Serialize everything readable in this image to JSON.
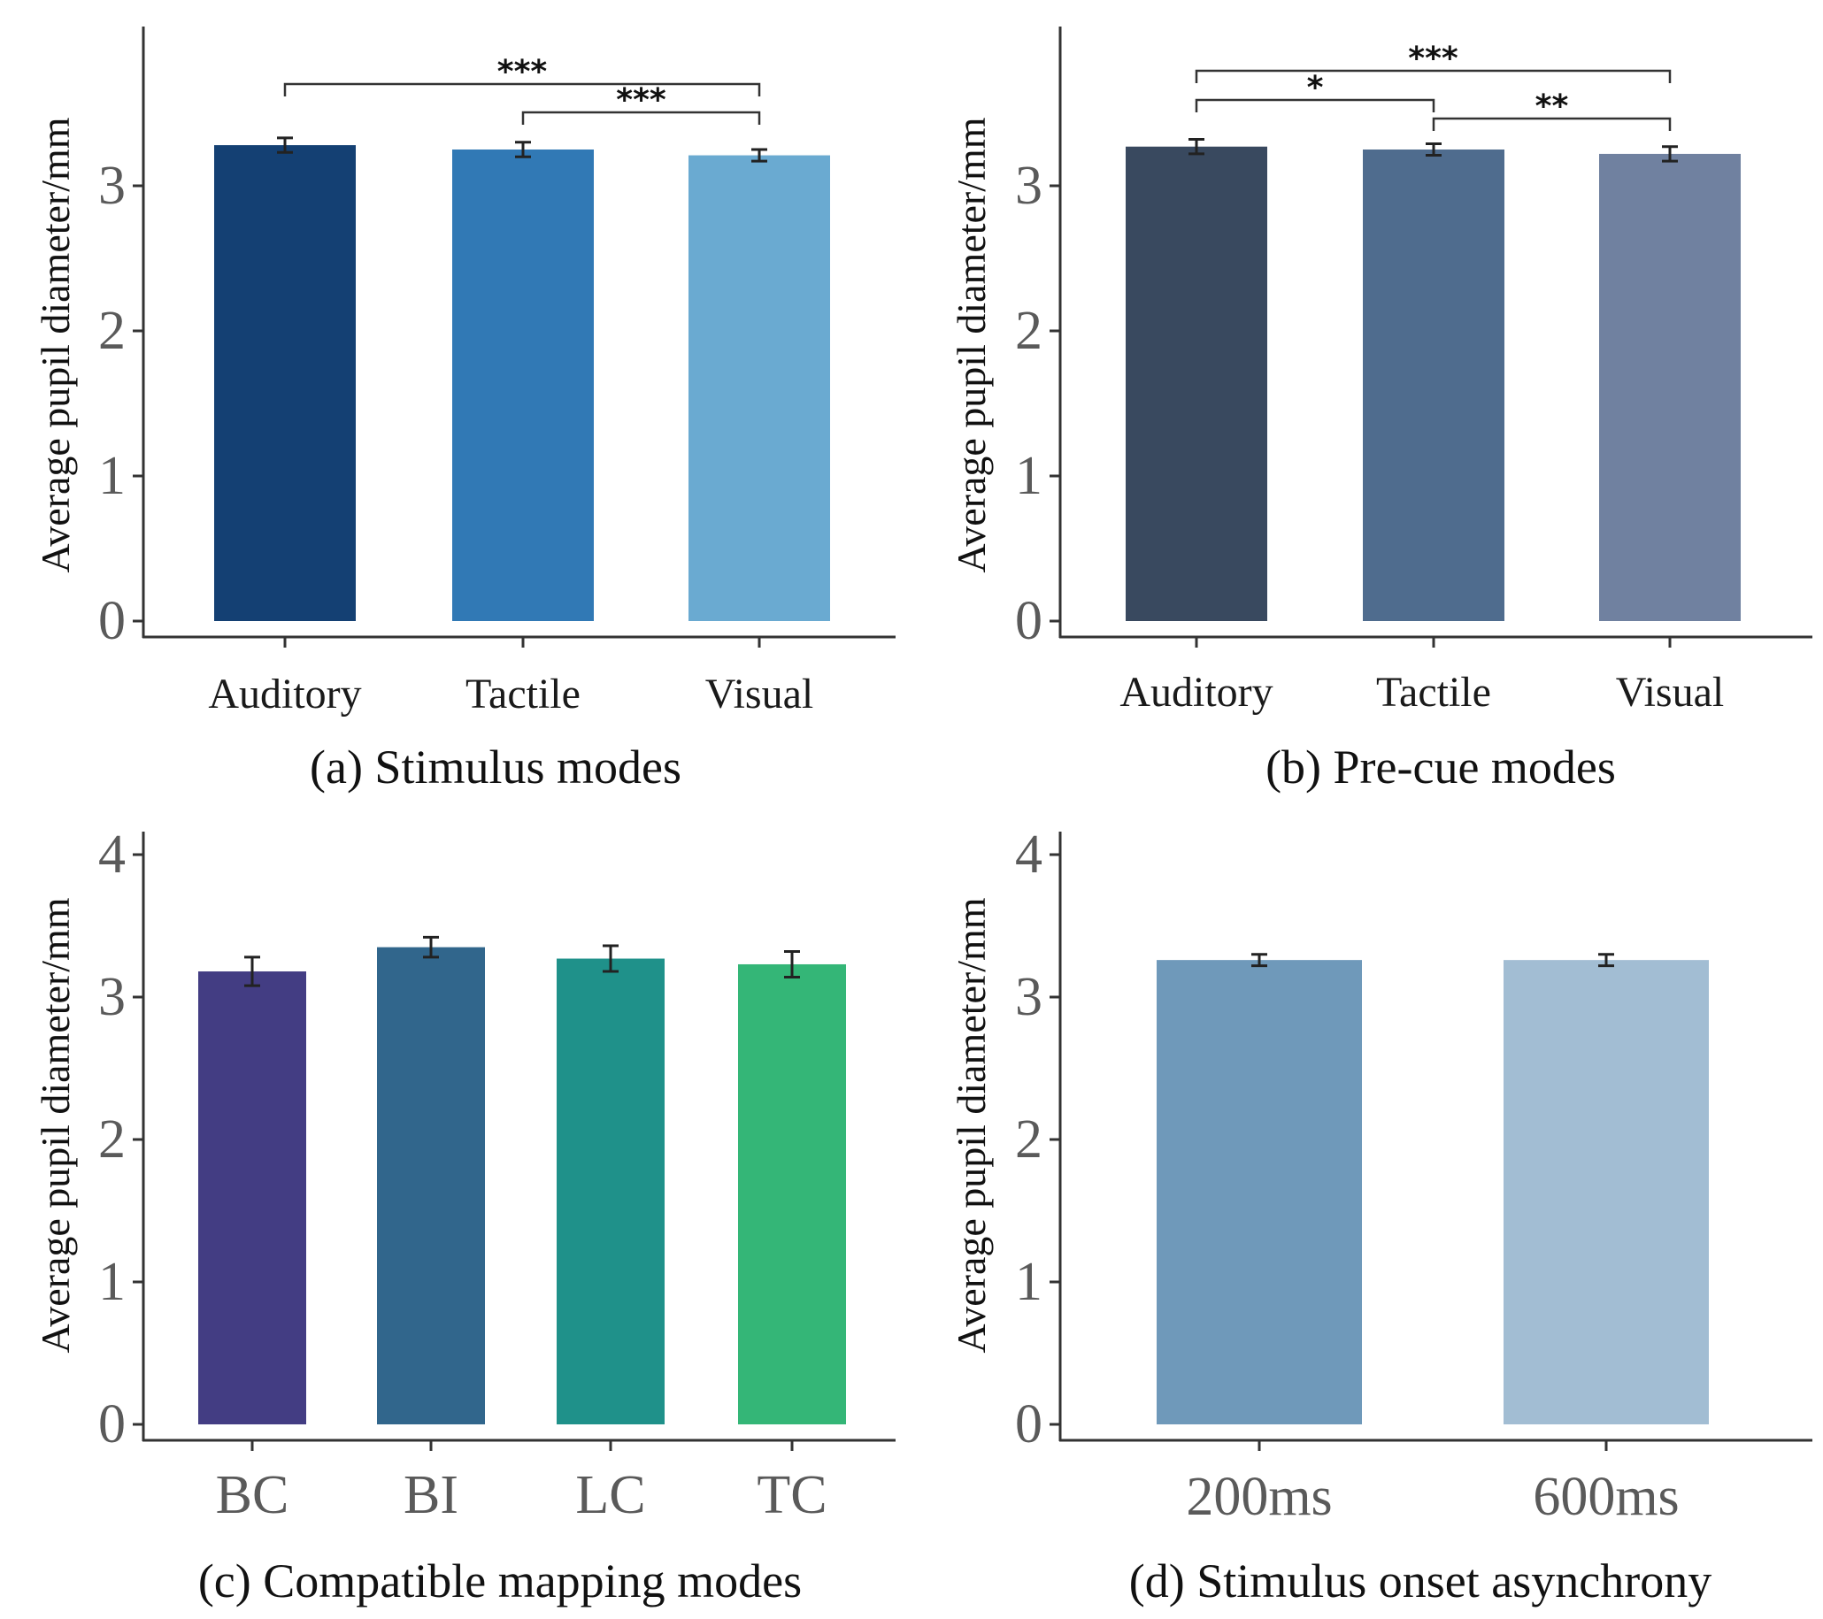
{
  "chart_data": [
    {
      "id": "a",
      "type": "bar",
      "caption": "(a) Stimulus modes",
      "ylabel": "Average pupil diameter/mm",
      "ylim": [
        0,
        4
      ],
      "yticks": [
        "0",
        "1",
        "2",
        "3"
      ],
      "categories": [
        "Auditory",
        "Tactile",
        "Visual"
      ],
      "values": [
        3.28,
        3.25,
        3.21
      ],
      "errors": [
        0.05,
        0.05,
        0.04
      ],
      "colors": [
        "#144073",
        "#3179b5",
        "#6aaad1"
      ],
      "significance": [
        {
          "from": 0,
          "to": 2,
          "label": "***"
        },
        {
          "from": 1,
          "to": 2,
          "label": "***"
        }
      ]
    },
    {
      "id": "b",
      "type": "bar",
      "caption": "(b) Pre-cue modes",
      "ylabel": "Average pupil diameter/mm",
      "ylim": [
        0,
        4
      ],
      "yticks": [
        "0",
        "1",
        "2",
        "3"
      ],
      "categories": [
        "Auditory",
        "Tactile",
        "Visual"
      ],
      "values": [
        3.27,
        3.25,
        3.22
      ],
      "errors": [
        0.05,
        0.04,
        0.05
      ],
      "colors": [
        "#39495f",
        "#4f6c8e",
        "#7081a0"
      ],
      "significance": [
        {
          "from": 0,
          "to": 2,
          "label": "***"
        },
        {
          "from": 0,
          "to": 1,
          "label": "*"
        },
        {
          "from": 1,
          "to": 2,
          "label": "**"
        }
      ]
    },
    {
      "id": "c",
      "type": "bar",
      "caption": "(c) Compatible mapping modes",
      "ylabel": "Average pupil diameter/mm",
      "ylim": [
        0,
        4
      ],
      "yticks": [
        "0",
        "1",
        "2",
        "3",
        "4"
      ],
      "categories": [
        "BC",
        "BI",
        "LC",
        "TC"
      ],
      "values": [
        3.18,
        3.35,
        3.27,
        3.23
      ],
      "errors": [
        0.1,
        0.07,
        0.09,
        0.09
      ],
      "colors": [
        "#433d83",
        "#31668c",
        "#1f918a",
        "#34b677"
      ],
      "significance": []
    },
    {
      "id": "d",
      "type": "bar",
      "caption": "(d) Stimulus onset asynchrony",
      "ylabel": "Average pupil diameter/mm",
      "ylim": [
        0,
        4
      ],
      "yticks": [
        "0",
        "1",
        "2",
        "3",
        "4"
      ],
      "categories": [
        "200ms",
        "600ms"
      ],
      "values": [
        3.26,
        3.26
      ],
      "errors": [
        0.04,
        0.04
      ],
      "colors": [
        "#6f99ba",
        "#a2bdd3"
      ],
      "significance": []
    }
  ]
}
